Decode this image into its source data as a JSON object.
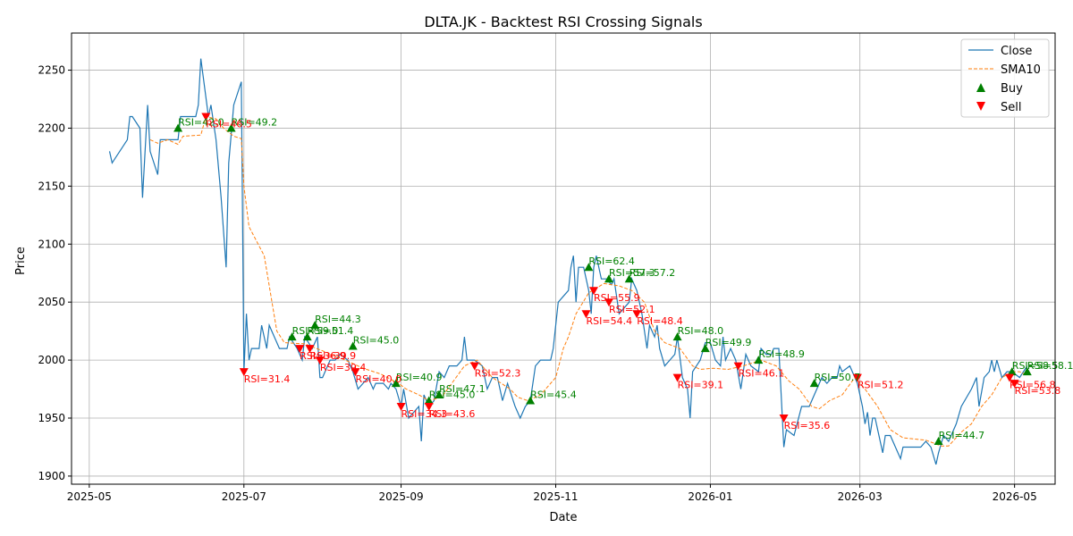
{
  "chart_data": {
    "type": "line",
    "title": "DLTA.JK - Backtest RSI Crossing Signals",
    "xlabel": "Date",
    "ylabel": "Price",
    "xlim": [
      "2025-04-24",
      "2026-05-17"
    ],
    "ylim": [
      1893,
      2282
    ],
    "x_ticks": [
      {
        "date": "2025-05-01",
        "label": "2025-05"
      },
      {
        "date": "2025-07-01",
        "label": "2025-07"
      },
      {
        "date": "2025-09-01",
        "label": "2025-09"
      },
      {
        "date": "2025-11-01",
        "label": "2025-11"
      },
      {
        "date": "2026-01-01",
        "label": "2026-01"
      },
      {
        "date": "2026-03-01",
        "label": "2026-03"
      },
      {
        "date": "2026-05-01",
        "label": "2026-05"
      }
    ],
    "y_ticks": [
      1900,
      1950,
      2000,
      2050,
      2100,
      2150,
      2200,
      2250
    ],
    "grid": true,
    "legend": {
      "position": "top-right",
      "entries": [
        "Close",
        "SMA10",
        "Buy",
        "Sell"
      ]
    },
    "colors": {
      "close": "#1f77b4",
      "sma": "#ff7f0e",
      "buy": "#008000",
      "sell": "#ff0000"
    },
    "close": [
      [
        "2025-05-09",
        2180
      ],
      [
        "2025-05-10",
        2170
      ],
      [
        "2025-05-16",
        2190
      ],
      [
        "2025-05-17",
        2210
      ],
      [
        "2025-05-18",
        2210
      ],
      [
        "2025-05-21",
        2200
      ],
      [
        "2025-05-22",
        2140
      ],
      [
        "2025-05-24",
        2220
      ],
      [
        "2025-05-25",
        2180
      ],
      [
        "2025-05-28",
        2160
      ],
      [
        "2025-05-29",
        2190
      ],
      [
        "2025-06-05",
        2190
      ],
      [
        "2025-06-06",
        2210
      ],
      [
        "2025-06-12",
        2210
      ],
      [
        "2025-06-13",
        2220
      ],
      [
        "2025-06-14",
        2260
      ],
      [
        "2025-06-17",
        2210
      ],
      [
        "2025-06-18",
        2220
      ],
      [
        "2025-06-20",
        2190
      ],
      [
        "2025-06-22",
        2140
      ],
      [
        "2025-06-24",
        2080
      ],
      [
        "2025-06-25",
        2170
      ],
      [
        "2025-06-27",
        2220
      ],
      [
        "2025-06-30",
        2240
      ],
      [
        "2025-07-01",
        1990
      ],
      [
        "2025-07-02",
        2040
      ],
      [
        "2025-07-03",
        2000
      ],
      [
        "2025-07-04",
        2010
      ],
      [
        "2025-07-07",
        2010
      ],
      [
        "2025-07-08",
        2030
      ],
      [
        "2025-07-10",
        2010
      ],
      [
        "2025-07-11",
        2030
      ],
      [
        "2025-07-13",
        2020
      ],
      [
        "2025-07-15",
        2010
      ],
      [
        "2025-07-18",
        2010
      ],
      [
        "2025-07-19",
        2020
      ],
      [
        "2025-07-22",
        2010
      ],
      [
        "2025-07-24",
        2000
      ],
      [
        "2025-07-25",
        2020
      ],
      [
        "2025-07-28",
        2010
      ],
      [
        "2025-07-30",
        2020
      ],
      [
        "2025-07-31",
        1985
      ],
      [
        "2025-08-01",
        1985
      ],
      [
        "2025-08-02",
        1990
      ],
      [
        "2025-08-04",
        2000
      ],
      [
        "2025-08-06",
        2000
      ],
      [
        "2025-08-08",
        2005
      ],
      [
        "2025-08-11",
        2000
      ],
      [
        "2025-08-13",
        1990
      ],
      [
        "2025-08-15",
        1975
      ],
      [
        "2025-08-17",
        1980
      ],
      [
        "2025-08-19",
        1985
      ],
      [
        "2025-08-21",
        1975
      ],
      [
        "2025-08-22",
        1980
      ],
      [
        "2025-08-25",
        1980
      ],
      [
        "2025-08-27",
        1975
      ],
      [
        "2025-08-28",
        1980
      ],
      [
        "2025-08-30",
        1975
      ],
      [
        "2025-09-01",
        1960
      ],
      [
        "2025-09-02",
        1975
      ],
      [
        "2025-09-04",
        1950
      ],
      [
        "2025-09-06",
        1955
      ],
      [
        "2025-09-08",
        1960
      ],
      [
        "2025-09-09",
        1930
      ],
      [
        "2025-09-10",
        1970
      ],
      [
        "2025-09-12",
        1960
      ],
      [
        "2025-09-14",
        1965
      ],
      [
        "2025-09-16",
        1990
      ],
      [
        "2025-09-18",
        1985
      ],
      [
        "2025-09-20",
        1995
      ],
      [
        "2025-09-23",
        1995
      ],
      [
        "2025-09-25",
        2000
      ],
      [
        "2025-09-26",
        2020
      ],
      [
        "2025-09-27",
        2000
      ],
      [
        "2025-09-30",
        2000
      ],
      [
        "2025-10-03",
        1995
      ],
      [
        "2025-10-05",
        1975
      ],
      [
        "2025-10-07",
        1985
      ],
      [
        "2025-10-09",
        1985
      ],
      [
        "2025-10-11",
        1965
      ],
      [
        "2025-10-13",
        1980
      ],
      [
        "2025-10-16",
        1960
      ],
      [
        "2025-10-18",
        1950
      ],
      [
        "2025-10-20",
        1960
      ],
      [
        "2025-10-22",
        1965
      ],
      [
        "2025-10-24",
        1995
      ],
      [
        "2025-10-26",
        2000
      ],
      [
        "2025-10-28",
        2000
      ],
      [
        "2025-10-30",
        2000
      ],
      [
        "2025-10-31",
        2010
      ],
      [
        "2025-11-02",
        2050
      ],
      [
        "2025-11-04",
        2055
      ],
      [
        "2025-11-06",
        2060
      ],
      [
        "2025-11-07",
        2080
      ],
      [
        "2025-11-08",
        2090
      ],
      [
        "2025-11-09",
        2050
      ],
      [
        "2025-11-10",
        2080
      ],
      [
        "2025-11-12",
        2080
      ],
      [
        "2025-11-14",
        2060
      ],
      [
        "2025-11-15",
        2040
      ],
      [
        "2025-11-16",
        2080
      ],
      [
        "2025-11-17",
        2090
      ],
      [
        "2025-11-19",
        2070
      ],
      [
        "2025-11-21",
        2070
      ],
      [
        "2025-11-23",
        2065
      ],
      [
        "2025-11-24",
        2070
      ],
      [
        "2025-11-26",
        2040
      ],
      [
        "2025-11-28",
        2045
      ],
      [
        "2025-11-30",
        2050
      ],
      [
        "2025-12-01",
        2070
      ],
      [
        "2025-12-03",
        2060
      ],
      [
        "2025-12-05",
        2040
      ],
      [
        "2025-12-07",
        2010
      ],
      [
        "2025-12-08",
        2030
      ],
      [
        "2025-12-10",
        2020
      ],
      [
        "2025-12-11",
        2030
      ],
      [
        "2025-12-12",
        2010
      ],
      [
        "2025-12-14",
        1995
      ],
      [
        "2025-12-16",
        2000
      ],
      [
        "2025-12-18",
        2005
      ],
      [
        "2025-12-19",
        2020
      ],
      [
        "2025-12-21",
        1985
      ],
      [
        "2025-12-23",
        1975
      ],
      [
        "2025-12-24",
        1950
      ],
      [
        "2025-12-25",
        1990
      ],
      [
        "2025-12-28",
        2000
      ],
      [
        "2025-12-30",
        2015
      ],
      [
        "2026-01-01",
        2015
      ],
      [
        "2026-01-03",
        2000
      ],
      [
        "2026-01-05",
        1995
      ],
      [
        "2026-01-06",
        2020
      ],
      [
        "2026-01-07",
        2000
      ],
      [
        "2026-01-09",
        2010
      ],
      [
        "2026-01-11",
        2000
      ],
      [
        "2026-01-13",
        1975
      ],
      [
        "2026-01-15",
        2005
      ],
      [
        "2026-01-17",
        1995
      ],
      [
        "2026-01-20",
        1990
      ],
      [
        "2026-01-21",
        2010
      ],
      [
        "2026-01-23",
        2005
      ],
      [
        "2026-01-25",
        2005
      ],
      [
        "2026-01-26",
        2010
      ],
      [
        "2026-01-28",
        2010
      ],
      [
        "2026-01-30",
        1925
      ],
      [
        "2026-01-31",
        1940
      ],
      [
        "2026-02-03",
        1935
      ],
      [
        "2026-02-06",
        1960
      ],
      [
        "2026-02-09",
        1960
      ],
      [
        "2026-02-12",
        1975
      ],
      [
        "2026-02-14",
        1985
      ],
      [
        "2026-02-16",
        1980
      ],
      [
        "2026-02-18",
        1985
      ],
      [
        "2026-02-20",
        1985
      ],
      [
        "2026-02-21",
        1995
      ],
      [
        "2026-02-22",
        1990
      ],
      [
        "2026-02-25",
        1995
      ],
      [
        "2026-02-28",
        1980
      ],
      [
        "2026-03-02",
        1960
      ],
      [
        "2026-03-03",
        1945
      ],
      [
        "2026-03-04",
        1955
      ],
      [
        "2026-03-05",
        1935
      ],
      [
        "2026-03-06",
        1950
      ],
      [
        "2026-03-07",
        1950
      ],
      [
        "2026-03-10",
        1920
      ],
      [
        "2026-03-11",
        1935
      ],
      [
        "2026-03-13",
        1935
      ],
      [
        "2026-03-17",
        1915
      ],
      [
        "2026-03-18",
        1925
      ],
      [
        "2026-03-21",
        1925
      ],
      [
        "2026-03-25",
        1925
      ],
      [
        "2026-03-27",
        1930
      ],
      [
        "2026-03-29",
        1925
      ],
      [
        "2026-03-31",
        1910
      ],
      [
        "2026-04-01",
        1920
      ],
      [
        "2026-04-03",
        1935
      ],
      [
        "2026-04-05",
        1930
      ],
      [
        "2026-04-08",
        1945
      ],
      [
        "2026-04-10",
        1960
      ],
      [
        "2026-04-14",
        1975
      ],
      [
        "2026-04-16",
        1985
      ],
      [
        "2026-04-17",
        1960
      ],
      [
        "2026-04-19",
        1985
      ],
      [
        "2026-04-21",
        1990
      ],
      [
        "2026-04-22",
        2000
      ],
      [
        "2026-04-23",
        1990
      ],
      [
        "2026-04-24",
        2000
      ],
      [
        "2026-04-26",
        1985
      ],
      [
        "2026-04-28",
        1990
      ],
      [
        "2026-04-30",
        1990
      ],
      [
        "2026-05-03",
        1985
      ],
      [
        "2026-05-06",
        1995
      ]
    ],
    "sma10": [
      [
        "2025-05-25",
        2190
      ],
      [
        "2025-05-28",
        2187
      ],
      [
        "2025-06-01",
        2190
      ],
      [
        "2025-06-03",
        2188
      ],
      [
        "2025-06-05",
        2186
      ],
      [
        "2025-06-07",
        2193
      ],
      [
        "2025-06-14",
        2194
      ],
      [
        "2025-06-16",
        2210
      ],
      [
        "2025-06-20",
        2208
      ],
      [
        "2025-06-23",
        2200
      ],
      [
        "2025-06-27",
        2193
      ],
      [
        "2025-06-30",
        2191
      ],
      [
        "2025-07-01",
        2150
      ],
      [
        "2025-07-03",
        2115
      ],
      [
        "2025-07-09",
        2090
      ],
      [
        "2025-07-14",
        2025
      ],
      [
        "2025-07-17",
        2015
      ],
      [
        "2025-07-25",
        2014
      ],
      [
        "2025-08-01",
        2008
      ],
      [
        "2025-08-10",
        2000
      ],
      [
        "2025-08-17",
        1993
      ],
      [
        "2025-08-24",
        1988
      ],
      [
        "2025-08-31",
        1980
      ],
      [
        "2025-09-03",
        1975
      ],
      [
        "2025-09-08",
        1970
      ],
      [
        "2025-09-12",
        1965
      ],
      [
        "2025-09-17",
        1968
      ],
      [
        "2025-09-21",
        1980
      ],
      [
        "2025-09-26",
        1995
      ],
      [
        "2025-10-01",
        2000
      ],
      [
        "2025-10-07",
        1985
      ],
      [
        "2025-10-14",
        1975
      ],
      [
        "2025-10-17",
        1968
      ],
      [
        "2025-10-21",
        1965
      ],
      [
        "2025-10-26",
        1970
      ],
      [
        "2025-11-01",
        1985
      ],
      [
        "2025-11-04",
        2010
      ],
      [
        "2025-11-06",
        2020
      ],
      [
        "2025-11-09",
        2040
      ],
      [
        "2025-11-14",
        2058
      ],
      [
        "2025-11-20",
        2066
      ],
      [
        "2025-11-26",
        2064
      ],
      [
        "2025-12-01",
        2060
      ],
      [
        "2025-12-06",
        2050
      ],
      [
        "2025-12-10",
        2025
      ],
      [
        "2025-12-14",
        2015
      ],
      [
        "2025-12-20",
        2010
      ],
      [
        "2025-12-25",
        1995
      ],
      [
        "2025-12-28",
        1992
      ],
      [
        "2026-01-02",
        1993
      ],
      [
        "2026-01-08",
        1992
      ],
      [
        "2026-01-14",
        1995
      ],
      [
        "2026-01-21",
        2000
      ],
      [
        "2026-01-27",
        1995
      ],
      [
        "2026-02-01",
        1982
      ],
      [
        "2026-02-05",
        1975
      ],
      [
        "2026-02-10",
        1960
      ],
      [
        "2026-02-13",
        1958
      ],
      [
        "2026-02-17",
        1965
      ],
      [
        "2026-02-22",
        1970
      ],
      [
        "2026-02-27",
        1985
      ],
      [
        "2026-03-03",
        1975
      ],
      [
        "2026-03-08",
        1960
      ],
      [
        "2026-03-13",
        1940
      ],
      [
        "2026-03-18",
        1933
      ],
      [
        "2026-03-27",
        1931
      ],
      [
        "2026-04-02",
        1926
      ],
      [
        "2026-04-05",
        1926
      ],
      [
        "2026-04-10",
        1938
      ],
      [
        "2026-04-14",
        1945
      ],
      [
        "2026-04-18",
        1960
      ],
      [
        "2026-04-22",
        1970
      ],
      [
        "2026-04-26",
        1985
      ],
      [
        "2026-04-30",
        1990
      ],
      [
        "2026-05-03",
        1990
      ],
      [
        "2026-05-06",
        1987
      ]
    ],
    "buy_signals": [
      {
        "date": "2025-06-05",
        "price": 2200,
        "label": "RSI=42.0"
      },
      {
        "date": "2025-06-26",
        "price": 2200,
        "label": "RSI=49.2"
      },
      {
        "date": "2025-07-20",
        "price": 2020,
        "label": "RSI=59.0"
      },
      {
        "date": "2025-07-26",
        "price": 2020,
        "label": "RSI=51.4"
      },
      {
        "date": "2025-07-29",
        "price": 2030,
        "label": "RSI=44.3"
      },
      {
        "date": "2025-08-13",
        "price": 2012,
        "label": "RSI=45.0"
      },
      {
        "date": "2025-08-30",
        "price": 1980,
        "label": "RSI=40.9"
      },
      {
        "date": "2025-09-12",
        "price": 1965,
        "label": "RSI=45.0"
      },
      {
        "date": "2025-09-16",
        "price": 1970,
        "label": "RSI=47.1"
      },
      {
        "date": "2025-10-22",
        "price": 1965,
        "label": "RSI=45.4"
      },
      {
        "date": "2025-11-14",
        "price": 2080,
        "label": "RSI=62.4"
      },
      {
        "date": "2025-11-22",
        "price": 2070,
        "label": "RSI=57.3"
      },
      {
        "date": "2025-11-30",
        "price": 2070,
        "label": "RSI=57.2"
      },
      {
        "date": "2025-12-19",
        "price": 2020,
        "label": "RSI=48.0"
      },
      {
        "date": "2025-12-30",
        "price": 2010,
        "label": "RSI=49.9"
      },
      {
        "date": "2026-01-20",
        "price": 2000,
        "label": "RSI=48.9"
      },
      {
        "date": "2026-02-11",
        "price": 1980,
        "label": "RSI=50.7"
      },
      {
        "date": "2026-04-01",
        "price": 1930,
        "label": "RSI=44.7"
      },
      {
        "date": "2026-04-30",
        "price": 1990,
        "label": "RSI=58.5"
      },
      {
        "date": "2026-05-06",
        "price": 1990,
        "label": "RSI=58.1"
      }
    ],
    "sell_signals": [
      {
        "date": "2025-06-16",
        "price": 2210,
        "label": "RSI=46.5"
      },
      {
        "date": "2025-07-01",
        "price": 1990,
        "label": "RSI=31.4"
      },
      {
        "date": "2025-07-23",
        "price": 2010,
        "label": "RSI=36.9"
      },
      {
        "date": "2025-07-27",
        "price": 2010,
        "label": "RSI=39.9"
      },
      {
        "date": "2025-07-31",
        "price": 2000,
        "label": "RSI=39.4"
      },
      {
        "date": "2025-08-14",
        "price": 1990,
        "label": "RSI=40.0"
      },
      {
        "date": "2025-09-01",
        "price": 1960,
        "label": "RSI=34.3"
      },
      {
        "date": "2025-09-12",
        "price": 1960,
        "label": "RSI=43.6"
      },
      {
        "date": "2025-09-30",
        "price": 1995,
        "label": "RSI=52.3"
      },
      {
        "date": "2025-11-13",
        "price": 2040,
        "label": "RSI=54.4"
      },
      {
        "date": "2025-11-16",
        "price": 2060,
        "label": "RSI=55.9"
      },
      {
        "date": "2025-11-22",
        "price": 2050,
        "label": "RSI=52.1"
      },
      {
        "date": "2025-12-03",
        "price": 2040,
        "label": "RSI=48.4"
      },
      {
        "date": "2025-12-19",
        "price": 1985,
        "label": "RSI=39.1"
      },
      {
        "date": "2026-01-12",
        "price": 1995,
        "label": "RSI=46.1"
      },
      {
        "date": "2026-01-30",
        "price": 1950,
        "label": "RSI=35.6"
      },
      {
        "date": "2026-02-28",
        "price": 1985,
        "label": "RSI=51.2"
      },
      {
        "date": "2026-04-29",
        "price": 1985,
        "label": "RSI=56.8"
      },
      {
        "date": "2026-05-01",
        "price": 1980,
        "label": "RSI=53.8"
      }
    ]
  }
}
